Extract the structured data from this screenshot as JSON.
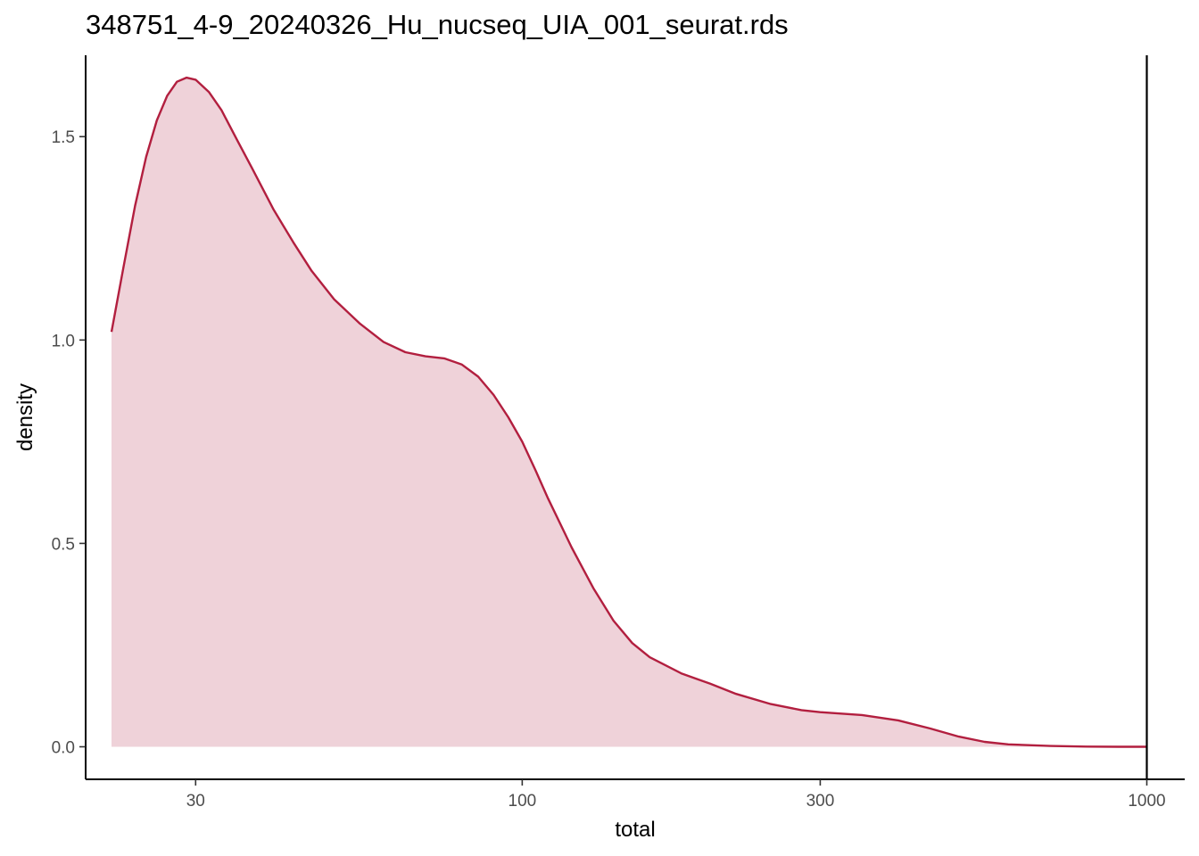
{
  "chart_data": {
    "type": "area",
    "title": "348751_4-9_20240326_Hu_nucseq_UIA_001_seurat.rds",
    "xlabel": "total",
    "ylabel": "density",
    "x_scale": "log10",
    "xlim": [
      20,
      1150
    ],
    "ylim": [
      -0.08,
      1.7
    ],
    "grid": false,
    "x_ticks": [
      {
        "value": 30,
        "label": "30"
      },
      {
        "value": 100,
        "label": "100"
      },
      {
        "value": 300,
        "label": "300"
      },
      {
        "value": 1000,
        "label": "1000"
      }
    ],
    "y_ticks": [
      {
        "value": 0.0,
        "label": "0.0"
      },
      {
        "value": 0.5,
        "label": "0.5"
      },
      {
        "value": 1.0,
        "label": "1.0"
      },
      {
        "value": 1.5,
        "label": "1.5"
      }
    ],
    "vline": {
      "x": 1000,
      "color": "#000000"
    },
    "series": [
      {
        "line_color": "#b21f3f",
        "fill_color": "#efd2d9",
        "x": [
          22,
          23,
          24,
          25,
          26,
          27,
          28,
          29,
          30,
          31.5,
          33,
          35,
          37,
          40,
          43,
          46,
          50,
          55,
          60,
          65,
          70,
          75,
          80,
          85,
          90,
          95,
          100,
          105,
          110,
          120,
          130,
          140,
          150,
          160,
          180,
          200,
          220,
          250,
          280,
          300,
          350,
          400,
          450,
          500,
          550,
          600,
          700,
          800,
          900,
          1000
        ],
        "y": [
          1.02,
          1.18,
          1.33,
          1.45,
          1.54,
          1.6,
          1.635,
          1.645,
          1.64,
          1.61,
          1.565,
          1.49,
          1.42,
          1.32,
          1.24,
          1.17,
          1.1,
          1.04,
          0.995,
          0.97,
          0.96,
          0.955,
          0.94,
          0.91,
          0.865,
          0.81,
          0.75,
          0.68,
          0.61,
          0.49,
          0.39,
          0.31,
          0.255,
          0.22,
          0.18,
          0.155,
          0.13,
          0.105,
          0.09,
          0.085,
          0.078,
          0.065,
          0.045,
          0.025,
          0.012,
          0.006,
          0.002,
          0.0005,
          0.0001,
          0.0
        ]
      }
    ]
  }
}
